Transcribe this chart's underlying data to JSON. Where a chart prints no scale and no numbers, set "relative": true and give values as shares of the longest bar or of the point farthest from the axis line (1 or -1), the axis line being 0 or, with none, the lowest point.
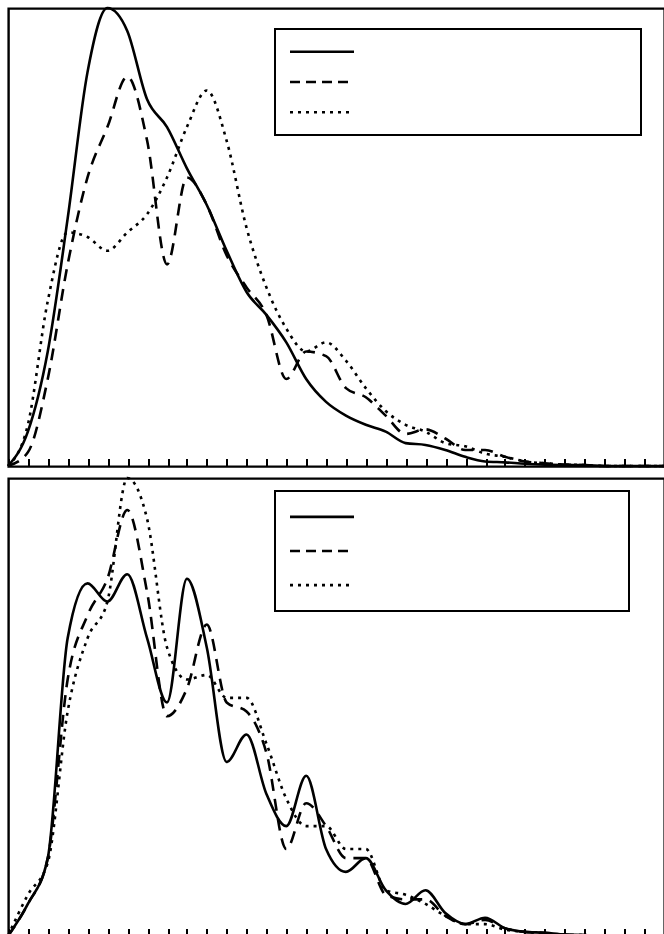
{
  "chart_data": [
    {
      "type": "line",
      "relative": true,
      "tick_labels": false,
      "grid": false,
      "categories": [
        null,
        null,
        null,
        null,
        null,
        null,
        null,
        null,
        null,
        null,
        null,
        null,
        null,
        null,
        null,
        null,
        null,
        null,
        null,
        null,
        null,
        null,
        null,
        null,
        null,
        null,
        null,
        null,
        null,
        null,
        null,
        null,
        null,
        null
      ],
      "series": [
        {
          "color": "#000000",
          "line_style": "solid",
          "values": [
            0,
            0.075,
            0.25,
            0.54,
            0.86,
            1,
            0.95,
            0.8,
            0.74,
            0.65,
            0.57,
            0.47,
            0.38,
            0.33,
            0.27,
            0.19,
            0.14,
            0.11,
            0.09,
            0.075,
            0.05,
            0.046,
            0.035,
            0.02,
            0.01,
            0.008,
            0.005,
            0.003,
            0.002,
            0.002,
            0,
            0,
            0,
            0
          ]
        },
        {
          "color": "#000000",
          "line_style": "dashed",
          "values": [
            0,
            0.03,
            0.19,
            0.44,
            0.63,
            0.74,
            0.85,
            0.71,
            0.44,
            0.63,
            0.57,
            0.46,
            0.39,
            0.33,
            0.19,
            0.25,
            0.24,
            0.17,
            0.15,
            0.11,
            0.07,
            0.08,
            0.06,
            0.035,
            0.035,
            0.02,
            0.01,
            0.006,
            0.003,
            0.002,
            0,
            0,
            0,
            0
          ]
        },
        {
          "color": "#000000",
          "line_style": "dotted",
          "values": [
            0,
            0.09,
            0.36,
            0.51,
            0.5,
            0.47,
            0.51,
            0.55,
            0.63,
            0.74,
            0.82,
            0.71,
            0.52,
            0.39,
            0.3,
            0.25,
            0.27,
            0.23,
            0.17,
            0.12,
            0.09,
            0.075,
            0.05,
            0.043,
            0.027,
            0.02,
            0.01,
            0.006,
            0.003,
            0.002,
            0,
            0,
            0,
            0
          ]
        }
      ]
    },
    {
      "type": "line",
      "relative": true,
      "tick_labels": false,
      "grid": false,
      "categories": [
        null,
        null,
        null,
        null,
        null,
        null,
        null,
        null,
        null,
        null,
        null,
        null,
        null,
        null,
        null,
        null,
        null,
        null,
        null,
        null,
        null,
        null,
        null,
        null,
        null,
        null,
        null,
        null,
        null,
        null,
        null,
        null,
        null,
        null
      ],
      "series": [
        {
          "color": "#000000",
          "line_style": "solid",
          "values": [
            0,
            0.07,
            0.17,
            0.65,
            0.77,
            0.73,
            0.79,
            0.65,
            0.51,
            0.78,
            0.63,
            0.38,
            0.44,
            0.31,
            0.24,
            0.35,
            0.19,
            0.14,
            0.17,
            0.1,
            0.07,
            0.1,
            0.05,
            0.026,
            0.04,
            0.017,
            0.009,
            0.007,
            0.003,
            0.002,
            0,
            0,
            0,
            0
          ]
        },
        {
          "color": "#000000",
          "line_style": "dashed",
          "values": [
            0,
            0.07,
            0.17,
            0.56,
            0.7,
            0.78,
            0.93,
            0.75,
            0.48,
            0.54,
            0.68,
            0.51,
            0.49,
            0.4,
            0.19,
            0.29,
            0.24,
            0.17,
            0.17,
            0.09,
            0.08,
            0.08,
            0.044,
            0.026,
            0.035,
            0.017,
            0.009,
            0.007,
            0.003,
            0.002,
            0,
            0,
            0,
            0
          ]
        },
        {
          "color": "#000000",
          "line_style": "dotted",
          "values": [
            0,
            0.09,
            0.16,
            0.49,
            0.65,
            0.73,
            1,
            0.91,
            0.63,
            0.56,
            0.57,
            0.52,
            0.52,
            0.42,
            0.3,
            0.24,
            0.24,
            0.19,
            0.19,
            0.1,
            0.09,
            0.07,
            0.044,
            0.026,
            0.026,
            0.014,
            0.009,
            0.005,
            0.003,
            0.002,
            0,
            0,
            0,
            0
          ]
        }
      ]
    }
  ]
}
